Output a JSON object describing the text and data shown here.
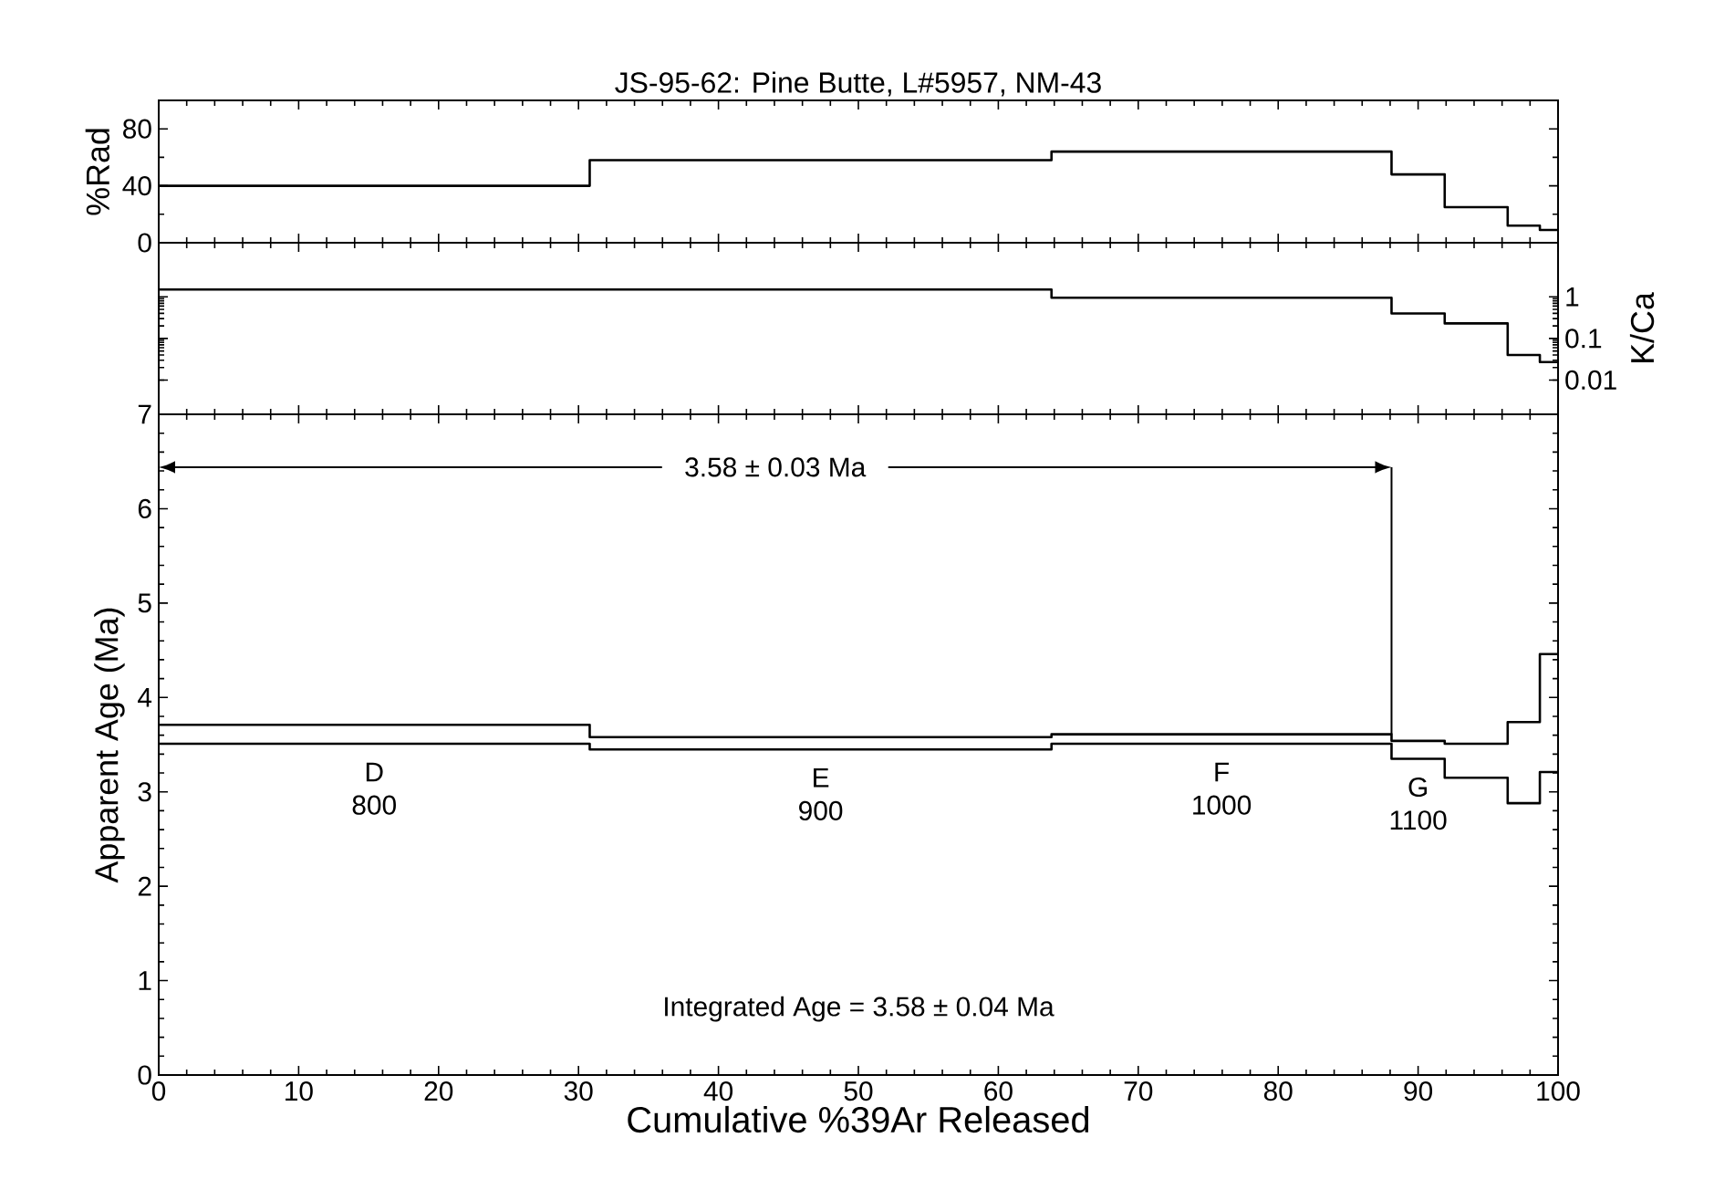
{
  "chart_data": [
    {
      "type": "step",
      "title": "JS-95-62: Pine Butte, L#5957, NM-43",
      "ylabel": "%Rad",
      "x": [
        0,
        30.8,
        63.8,
        88.1,
        91.9,
        96.4,
        98.7,
        100
      ],
      "xlim": [
        0,
        100
      ],
      "xticks": [
        0,
        10,
        20,
        30,
        40,
        50,
        60,
        70,
        80,
        90,
        100
      ],
      "ylim": [
        0,
        100
      ],
      "yticks": [
        0,
        40,
        80
      ],
      "tick_labels": "y",
      "series": [
        {
          "color": "#000000",
          "values": [
            40,
            58,
            64,
            48,
            25,
            12,
            9,
            9
          ]
        }
      ]
    },
    {
      "type": "step",
      "ylabel": "K/Ca",
      "log": "y",
      "x": [
        0,
        30.8,
        63.8,
        88.1,
        91.9,
        96.4,
        98.7,
        100
      ],
      "xlim": [
        0,
        100
      ],
      "xticks": [
        0,
        10,
        20,
        30,
        40,
        50,
        60,
        70,
        80,
        90,
        100
      ],
      "ylim": [
        0.0015,
        20
      ],
      "yticks": [
        0.01,
        0.1,
        1
      ],
      "tick_labels": "y",
      "series": [
        {
          "color": "#000000",
          "values": [
            1.5,
            1.5,
            0.95,
            0.4,
            0.23,
            0.04,
            0.027,
            0.027
          ]
        }
      ]
    },
    {
      "type": "step",
      "xlabel": "Cumulative %39Ar Released",
      "ylabel": "Apparent Age (Ma)",
      "x": [
        0,
        30.8,
        63.8,
        88.1,
        91.9,
        96.4,
        98.7,
        100
      ],
      "xlim": [
        0,
        100
      ],
      "xticks": [
        0,
        10,
        20,
        30,
        40,
        50,
        60,
        70,
        80,
        90,
        100
      ],
      "ylim": [
        0,
        7
      ],
      "yticks": [
        0,
        1,
        2,
        3,
        4,
        5,
        6,
        7
      ],
      "series": [
        {
          "color": "#000000",
          "values": [
            3.71,
            3.58,
            3.61,
            3.54,
            3.51,
            3.74,
            4.46,
            4.46
          ]
        },
        {
          "color": "#000000",
          "values": [
            3.51,
            3.45,
            3.51,
            3.35,
            3.15,
            2.88,
            3.21,
            3.21
          ]
        }
      ],
      "ref_lines": [
        {
          "axis": "x",
          "value": 88.1,
          "label": "3.58 ± 0.03 Ma"
        }
      ],
      "annotations": [
        "D",
        "800",
        "E",
        "900",
        "F",
        "1000",
        "G",
        "1100",
        "Integrated Age = 3.58 ± 0.04 Ma"
      ]
    }
  ]
}
